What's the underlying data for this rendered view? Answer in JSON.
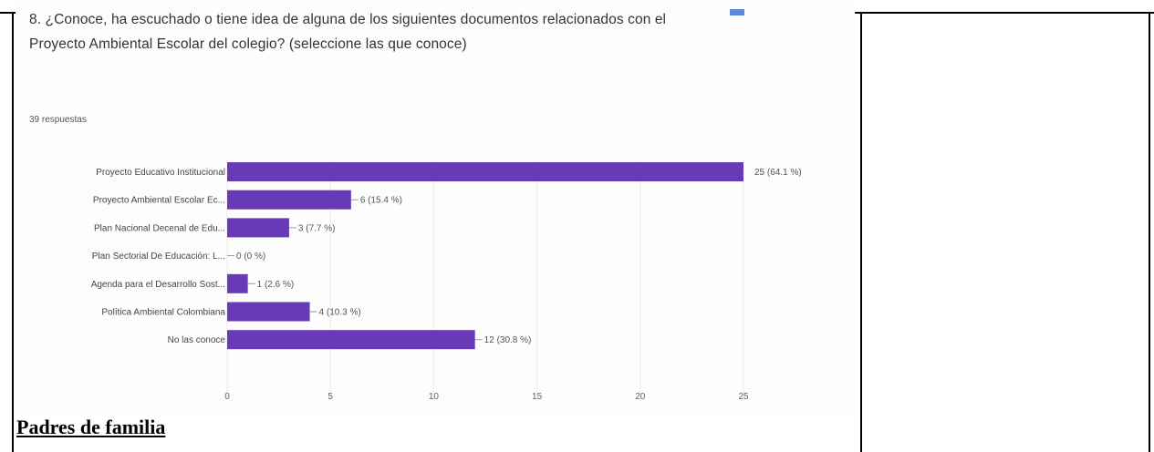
{
  "question": {
    "text": "8. ¿Conoce, ha escuchado o tiene idea de alguna de los siguientes documentos relacionados con el  Proyecto Ambiental Escolar del colegio? (seleccione las que conoce)"
  },
  "responses_label": "39 respuestas",
  "caption": "Padres de familia",
  "chart_data": {
    "type": "bar",
    "orientation": "horizontal",
    "categories": [
      "Proyecto Educativo Institucional",
      "Proyecto Ambiental Escolar Ec...",
      "Plan Nacional Decenal de Edu...",
      "Plan Sectorial De Educación: L...",
      "Agenda para el Desarrollo Sost...",
      "Política Ambiental Colombiana",
      "No las conoce"
    ],
    "values": [
      25,
      6,
      3,
      0,
      1,
      4,
      12
    ],
    "data_labels": [
      "25 (64.1 %)",
      "6 (15.4 %)",
      "3 (7.7 %)",
      "0 (0 %)",
      "1 (2.6 %)",
      "4 (10.3 %)",
      "12 (30.8 %)"
    ],
    "xlim": [
      0,
      25
    ],
    "xticks": [
      0,
      5,
      10,
      15,
      20,
      25
    ],
    "grid": true,
    "color": "#673ab7"
  }
}
